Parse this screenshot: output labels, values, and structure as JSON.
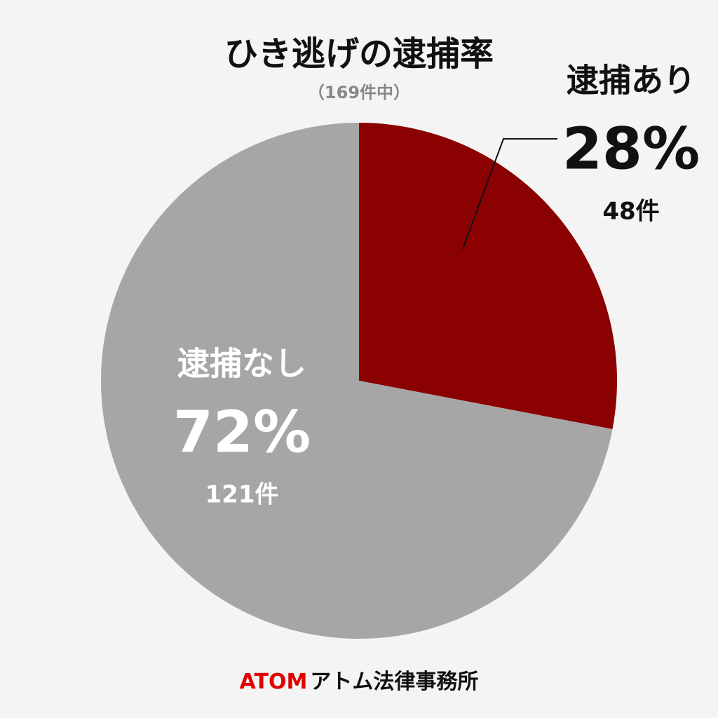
{
  "chart_data": {
    "type": "pie",
    "title": "ひき逃げの逮捕率",
    "subtitle": "（169件中）",
    "categories": [
      "逮捕あり",
      "逮捕なし"
    ],
    "values": [
      28,
      72
    ],
    "value_labels": [
      "28%",
      "72%"
    ],
    "count_labels": [
      "48件",
      "121件"
    ],
    "colors": [
      "#8b0000",
      "#a6a6a6"
    ],
    "start": "top",
    "direction": "clockwise"
  },
  "footer": {
    "brand": "ATOM",
    "name": "アトム法律事務所"
  }
}
